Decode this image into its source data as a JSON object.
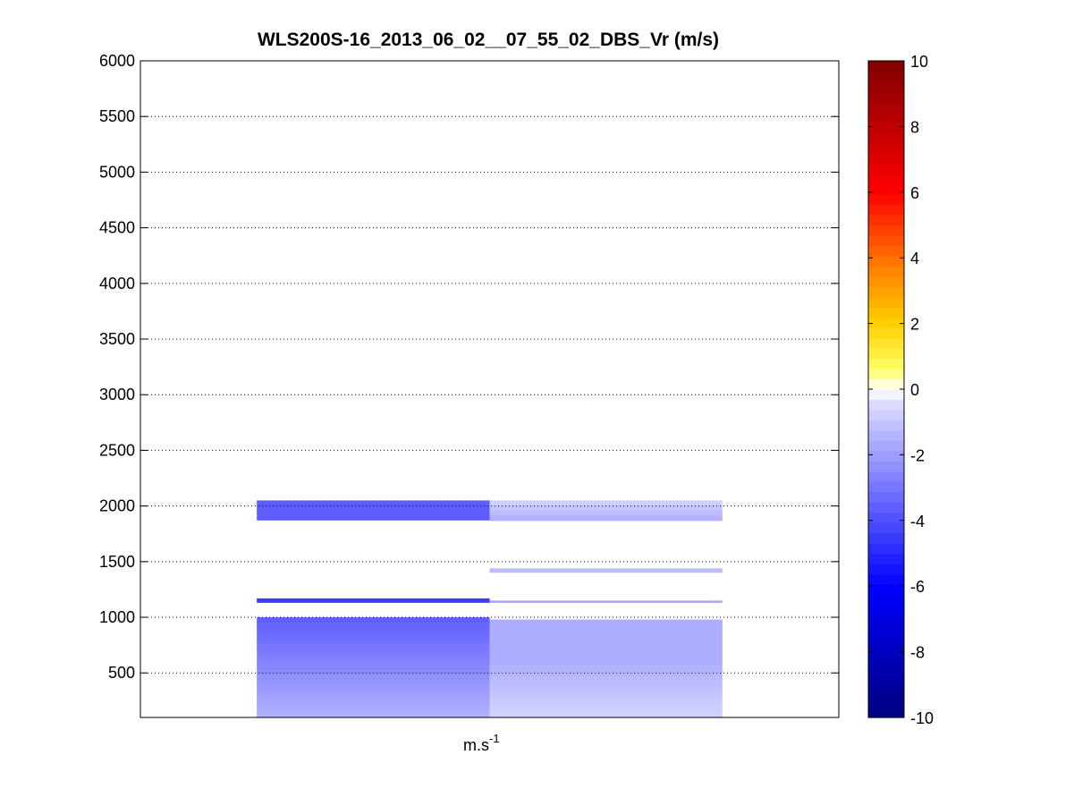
{
  "chart_data": {
    "type": "heatmap",
    "title": "WLS200S-16_2013_06_02__07_55_02_DBS_Vr (m/s)",
    "xlabel": {
      "base": "m.s",
      "superscript": "-1"
    },
    "ylabel": "",
    "ylim": [
      100,
      6000
    ],
    "yticks": [
      500,
      1000,
      1500,
      2000,
      2500,
      3000,
      3500,
      4000,
      4500,
      5000,
      5500,
      6000
    ],
    "grid": "horizontal dotted",
    "colorbar": {
      "clim": [
        -10,
        10
      ],
      "ticks": [
        -10,
        -8,
        -6,
        -4,
        -2,
        0,
        2,
        4,
        6,
        8,
        10
      ],
      "colormap": "blue-white-yellow-red",
      "stops": [
        {
          "v": -10,
          "color": "#000080"
        },
        {
          "v": -6,
          "color": "#0000ff"
        },
        {
          "v": -0.5,
          "color": "#d8d8ff"
        },
        {
          "v": 0,
          "color": "#ffffff"
        },
        {
          "v": 0.6,
          "color": "#ffff66"
        },
        {
          "v": 2,
          "color": "#ffd000"
        },
        {
          "v": 4,
          "color": "#ff7000"
        },
        {
          "v": 6,
          "color": "#ff0000"
        },
        {
          "v": 10,
          "color": "#800000"
        }
      ]
    },
    "columns": [
      {
        "id": "column-1",
        "bands": [
          {
            "y0": 100,
            "y1": 1000,
            "v_bottom": -1.5,
            "v_top": -3.6
          },
          {
            "y0": 1130,
            "y1": 1170,
            "v": -4.5
          },
          {
            "y0": 1870,
            "y1": 2050,
            "v": -3.6
          }
        ]
      },
      {
        "id": "column-2",
        "bands": [
          {
            "y0": 100,
            "y1": 560,
            "v_bottom": -0.6,
            "v_top": -1.5
          },
          {
            "y0": 560,
            "y1": 980,
            "v": -1.6
          },
          {
            "y0": 1130,
            "y1": 1150,
            "v": -1.8
          },
          {
            "y0": 1400,
            "y1": 1440,
            "v": -1.2
          },
          {
            "y0": 1870,
            "y1": 2050,
            "v_bottom": -1.6,
            "v_top": -0.6
          }
        ]
      }
    ]
  }
}
